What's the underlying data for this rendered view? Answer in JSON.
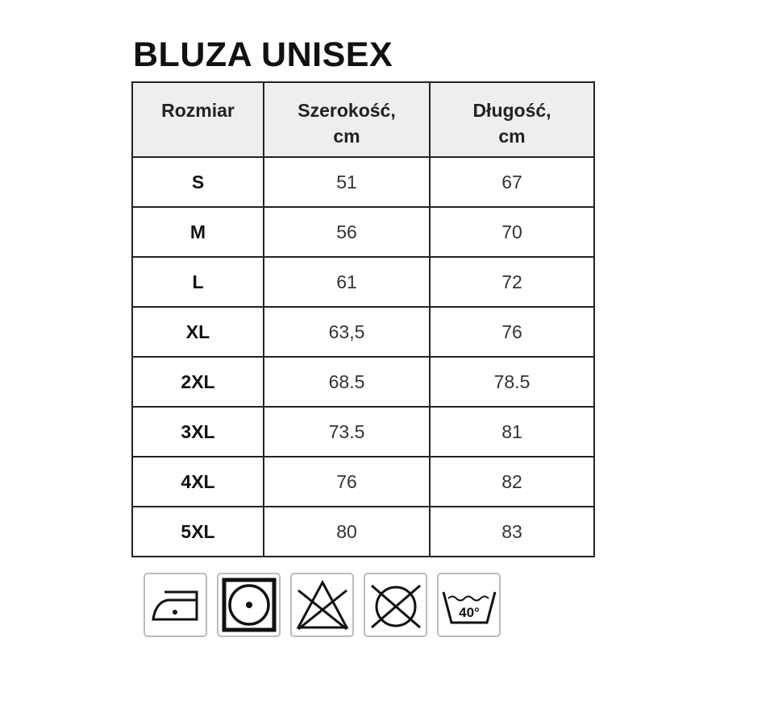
{
  "title": "BLUZA UNISEX",
  "table": {
    "headers": [
      "Rozmiar",
      "Szerokość, cm",
      "Długość, cm"
    ],
    "rows": [
      [
        "S",
        "51",
        "67"
      ],
      [
        "M",
        "56",
        "70"
      ],
      [
        "L",
        "61",
        "72"
      ],
      [
        "XL",
        "63,5",
        "76"
      ],
      [
        "2XL",
        "68.5",
        "78.5"
      ],
      [
        "3XL",
        "73.5",
        "81"
      ],
      [
        "4XL",
        "76",
        "82"
      ],
      [
        "5XL",
        "80",
        "83"
      ]
    ]
  },
  "care_icons": [
    {
      "icon": "iron-low-temperature-icon"
    },
    {
      "icon": "tumble-dry-icon"
    },
    {
      "icon": "do-not-bleach-icon"
    },
    {
      "icon": "do-not-dry-clean-icon"
    },
    {
      "icon": "wash-40-icon",
      "label": "40°"
    }
  ]
}
